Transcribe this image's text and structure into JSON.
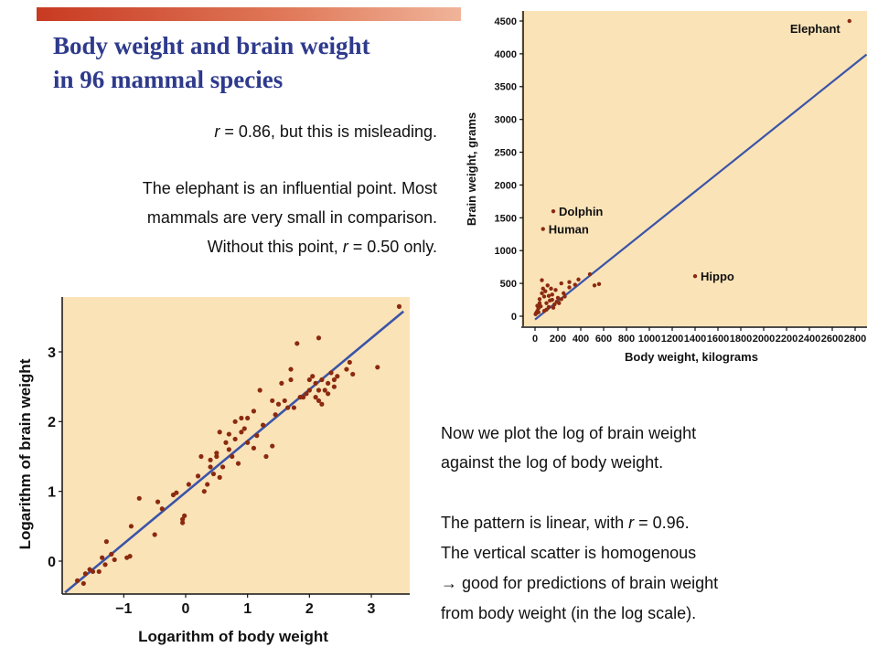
{
  "slide": {
    "title_line1": "Body weight and brain weight",
    "title_line2": "in 96 mammal species",
    "p1_pre": "r",
    "p1_post": " = 0.86, but this is misleading.",
    "p2_line1": "The elephant is an influential point. Most",
    "p2_line2": "mammals are very small in comparison.",
    "p2_line3_pre": "Without this point, ",
    "p2_line3_r": "r",
    "p2_line3_post": " = 0.50 only.",
    "p3_line1": "Now we plot the log of brain weight",
    "p3_line2": "against the log of body weight.",
    "p4_line1_pre": "The pattern is linear, with ",
    "p4_line1_r": "r",
    "p4_line1_post": " = 0.96.",
    "p4_line2": "The vertical scatter is homogenous",
    "p4_line3": "→ good for predictions of brain weight",
    "p4_line4": "from body weight (in the log scale)."
  },
  "colors": {
    "plot_bg": "#fbe3b8",
    "point": "#8b2a0f",
    "fit_line": "#3a54a8",
    "title": "#2e3a8c"
  },
  "chart_data": [
    {
      "type": "scatter",
      "title": "",
      "xlabel": "Body weight, kilograms",
      "ylabel": "Brain weight, grams",
      "xlim": [
        0,
        2800
      ],
      "ylim": [
        0,
        4500
      ],
      "xticks": [
        "0",
        "200",
        "400",
        "600",
        "800",
        "1000",
        "1200",
        "1400",
        "1600",
        "1800",
        "2000",
        "2200",
        "2400",
        "2600",
        "2800"
      ],
      "yticks": [
        "0",
        "500",
        "1000",
        "1500",
        "2000",
        "2500",
        "3000",
        "3500",
        "4000",
        "4500"
      ],
      "grid": false,
      "fit_line": [
        [
          0,
          -50
        ],
        [
          2900,
          3990
        ]
      ],
      "annotations": [
        {
          "label": "Elephant",
          "x": 2750,
          "y": 4500
        },
        {
          "label": "Dolphin",
          "x": 160,
          "y": 1600
        },
        {
          "label": "Human",
          "x": 70,
          "y": 1330
        },
        {
          "label": "Hippo",
          "x": 1400,
          "y": 610
        }
      ],
      "points": [
        [
          2750,
          4500
        ],
        [
          160,
          1600
        ],
        [
          70,
          1330
        ],
        [
          1400,
          610
        ],
        [
          520,
          470
        ],
        [
          560,
          490
        ],
        [
          380,
          560
        ],
        [
          480,
          640
        ],
        [
          300,
          440
        ],
        [
          250,
          350
        ],
        [
          230,
          500
        ],
        [
          200,
          280
        ],
        [
          150,
          250
        ],
        [
          120,
          310
        ],
        [
          180,
          400
        ],
        [
          100,
          200
        ],
        [
          80,
          300
        ],
        [
          60,
          350
        ],
        [
          40,
          200
        ],
        [
          30,
          120
        ],
        [
          20,
          80
        ],
        [
          10,
          50
        ],
        [
          5,
          30
        ],
        [
          50,
          150
        ],
        [
          140,
          420
        ],
        [
          90,
          380
        ],
        [
          210,
          200
        ],
        [
          170,
          180
        ],
        [
          60,
          550
        ],
        [
          110,
          470
        ],
        [
          130,
          240
        ],
        [
          260,
          300
        ],
        [
          70,
          420
        ],
        [
          40,
          260
        ],
        [
          20,
          160
        ],
        [
          300,
          520
        ],
        [
          350,
          480
        ],
        [
          150,
          330
        ],
        [
          190,
          220
        ],
        [
          230,
          260
        ],
        [
          100,
          100
        ],
        [
          160,
          130
        ],
        [
          120,
          140
        ],
        [
          80,
          80
        ],
        [
          30,
          60
        ]
      ]
    },
    {
      "type": "scatter",
      "title": "",
      "xlabel": "Logarithm of body weight",
      "ylabel": "Logarithm of brain weight",
      "xlim": [
        -1.9,
        3.55
      ],
      "ylim": [
        -0.4,
        3.7
      ],
      "xticks": [
        "−1",
        "0",
        "1",
        "2",
        "3"
      ],
      "yticks": [
        "0",
        "1",
        "2",
        "3"
      ],
      "grid": false,
      "fit_line": [
        [
          -1.95,
          -0.45
        ],
        [
          3.52,
          3.58
        ]
      ],
      "points": [
        [
          -1.75,
          -0.28
        ],
        [
          -1.65,
          -0.32
        ],
        [
          -1.62,
          -0.18
        ],
        [
          -1.55,
          -0.12
        ],
        [
          -1.5,
          -0.15
        ],
        [
          -1.4,
          -0.15
        ],
        [
          -1.35,
          0.05
        ],
        [
          -1.3,
          -0.05
        ],
        [
          -1.28,
          0.28
        ],
        [
          -1.2,
          0.1
        ],
        [
          -1.15,
          0.02
        ],
        [
          -0.95,
          0.05
        ],
        [
          -0.9,
          0.07
        ],
        [
          -0.88,
          0.5
        ],
        [
          -0.75,
          0.9
        ],
        [
          -0.5,
          0.38
        ],
        [
          -0.45,
          0.85
        ],
        [
          -0.38,
          0.75
        ],
        [
          -0.2,
          0.95
        ],
        [
          -0.15,
          0.98
        ],
        [
          -0.05,
          0.6
        ],
        [
          -0.05,
          0.55
        ],
        [
          -0.02,
          0.65
        ],
        [
          0.05,
          1.1
        ],
        [
          0.2,
          1.22
        ],
        [
          0.25,
          1.5
        ],
        [
          0.3,
          1.0
        ],
        [
          0.35,
          1.1
        ],
        [
          0.4,
          1.35
        ],
        [
          0.4,
          1.45
        ],
        [
          0.45,
          1.25
        ],
        [
          0.5,
          1.55
        ],
        [
          0.5,
          1.5
        ],
        [
          0.55,
          1.85
        ],
        [
          0.55,
          1.2
        ],
        [
          0.6,
          1.35
        ],
        [
          0.65,
          1.7
        ],
        [
          0.7,
          1.6
        ],
        [
          0.7,
          1.82
        ],
        [
          0.75,
          1.5
        ],
        [
          0.8,
          2.0
        ],
        [
          0.8,
          1.75
        ],
        [
          0.85,
          1.4
        ],
        [
          0.9,
          2.05
        ],
        [
          0.9,
          1.85
        ],
        [
          0.95,
          1.9
        ],
        [
          1.0,
          2.05
        ],
        [
          1.0,
          1.7
        ],
        [
          1.1,
          1.62
        ],
        [
          1.1,
          2.15
        ],
        [
          1.15,
          1.8
        ],
        [
          1.2,
          2.45
        ],
        [
          1.25,
          1.95
        ],
        [
          1.3,
          1.5
        ],
        [
          1.4,
          1.65
        ],
        [
          1.4,
          2.3
        ],
        [
          1.45,
          2.1
        ],
        [
          1.5,
          2.25
        ],
        [
          1.55,
          2.55
        ],
        [
          1.6,
          2.3
        ],
        [
          1.65,
          2.2
        ],
        [
          1.7,
          2.6
        ],
        [
          1.7,
          2.75
        ],
        [
          1.75,
          2.2
        ],
        [
          1.8,
          3.12
        ],
        [
          1.85,
          2.35
        ],
        [
          1.9,
          2.35
        ],
        [
          1.95,
          2.4
        ],
        [
          2.0,
          2.45
        ],
        [
          2.0,
          2.6
        ],
        [
          2.05,
          2.65
        ],
        [
          2.1,
          2.55
        ],
        [
          2.1,
          2.35
        ],
        [
          2.15,
          2.45
        ],
        [
          2.15,
          2.3
        ],
        [
          2.15,
          3.2
        ],
        [
          2.2,
          2.6
        ],
        [
          2.2,
          2.25
        ],
        [
          2.25,
          2.45
        ],
        [
          2.3,
          2.4
        ],
        [
          2.3,
          2.55
        ],
        [
          2.35,
          2.7
        ],
        [
          2.4,
          2.6
        ],
        [
          2.4,
          2.5
        ],
        [
          2.45,
          2.65
        ],
        [
          2.6,
          2.75
        ],
        [
          2.7,
          2.68
        ],
        [
          2.65,
          2.85
        ],
        [
          3.1,
          2.78
        ],
        [
          3.45,
          3.65
        ]
      ]
    }
  ]
}
